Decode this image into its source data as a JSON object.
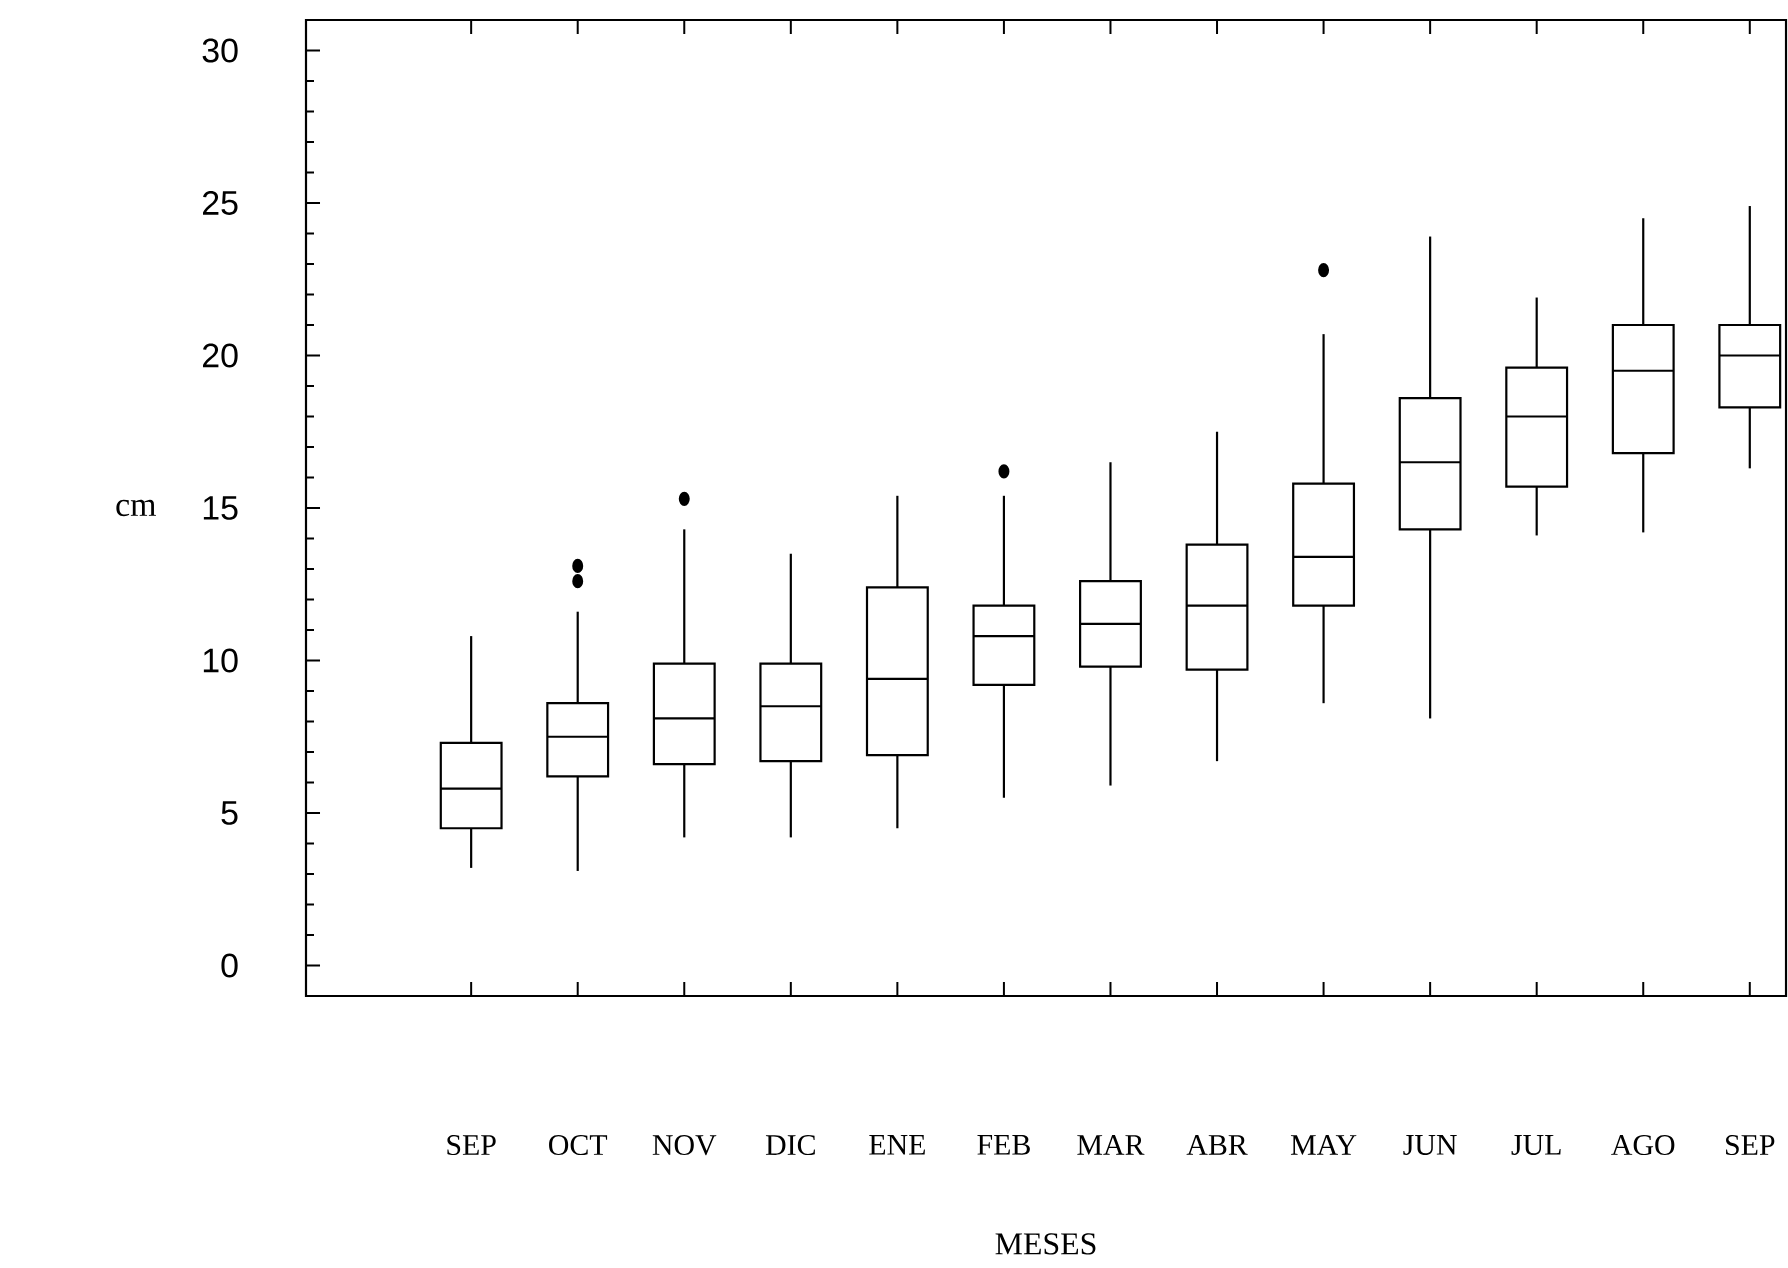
{
  "chart_data": {
    "type": "box",
    "xlabel": "MESES",
    "ylabel": "cm",
    "categories": [
      "SEP",
      "OCT",
      "NOV",
      "DIC",
      "ENE",
      "FEB",
      "MAR",
      "ABR",
      "MAY",
      "JUN",
      "JUL",
      "AGO",
      "SEP"
    ],
    "color": "#000000",
    "boxes": [
      {
        "low": 3.2,
        "q1": 4.5,
        "median": 5.8,
        "q3": 7.3,
        "high": 10.8
      },
      {
        "low": 3.1,
        "q1": 6.2,
        "median": 7.5,
        "q3": 8.6,
        "high": 11.6,
        "outliers": [
          12.6,
          13.1
        ]
      },
      {
        "low": 4.2,
        "q1": 6.6,
        "median": 8.1,
        "q3": 9.9,
        "high": 14.3,
        "outliers": [
          15.3
        ]
      },
      {
        "low": 4.2,
        "q1": 6.7,
        "median": 8.5,
        "q3": 9.9,
        "high": 13.5
      },
      {
        "low": 4.5,
        "q1": 6.9,
        "median": 9.4,
        "q3": 12.4,
        "high": 15.4
      },
      {
        "low": 5.5,
        "q1": 9.2,
        "median": 10.8,
        "q3": 11.8,
        "high": 15.4,
        "outliers": [
          16.2
        ]
      },
      {
        "low": 5.9,
        "q1": 9.8,
        "median": 11.2,
        "q3": 12.6,
        "high": 16.5
      },
      {
        "low": 6.7,
        "q1": 9.7,
        "median": 11.8,
        "q3": 13.8,
        "high": 17.5
      },
      {
        "low": 8.6,
        "q1": 11.8,
        "median": 13.4,
        "q3": 15.8,
        "high": 20.7,
        "outliers": [
          22.8
        ]
      },
      {
        "low": 8.1,
        "q1": 14.3,
        "median": 16.5,
        "q3": 18.6,
        "high": 23.9
      },
      {
        "low": 14.1,
        "q1": 15.7,
        "median": 18.0,
        "q3": 19.6,
        "high": 21.9
      },
      {
        "low": 14.2,
        "q1": 16.8,
        "median": 19.5,
        "q3": 21.0,
        "high": 24.5
      },
      {
        "low": 16.3,
        "q1": 18.3,
        "median": 20.0,
        "q3": 21.0,
        "high": 24.9
      }
    ],
    "ylim": [
      -1,
      31
    ],
    "yticks": [
      0,
      5,
      10,
      15,
      20,
      25,
      30
    ],
    "grid": false
  }
}
